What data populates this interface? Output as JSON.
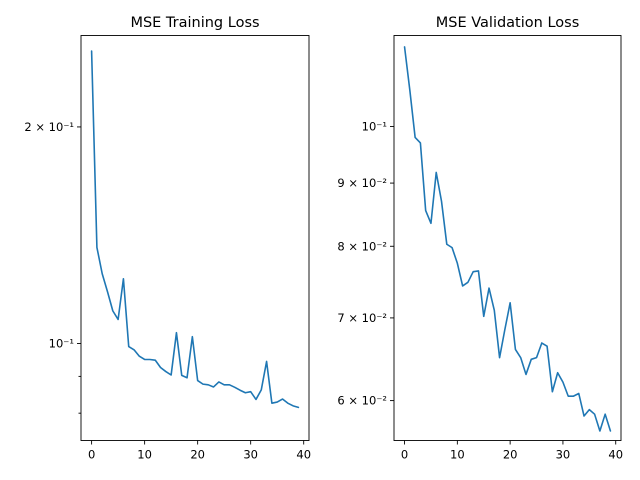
{
  "chart_data": [
    {
      "type": "line",
      "title": "MSE Training Loss",
      "xlabel": "",
      "ylabel": "",
      "yscale": "log",
      "xlim": [
        -2,
        41
      ],
      "ylim": [
        0.0733,
        0.268
      ],
      "xticks": [
        0,
        10,
        20,
        30,
        40
      ],
      "xtick_labels": [
        "0",
        "10",
        "20",
        "30",
        "40"
      ],
      "yticks": [
        0.2,
        0.1
      ],
      "ytick_labels": [
        "2 × 10⁻¹",
        "10⁻¹"
      ],
      "minor_yticks": [
        0.09,
        0.08
      ],
      "grid": false,
      "series": [
        {
          "color": "#1f77b4",
          "x": [
            0,
            1,
            2,
            3,
            4,
            5,
            6,
            7,
            8,
            9,
            10,
            11,
            12,
            13,
            14,
            15,
            16,
            17,
            18,
            19,
            20,
            21,
            22,
            23,
            24,
            25,
            26,
            27,
            28,
            29,
            30,
            31,
            32,
            33,
            34,
            35,
            36,
            37,
            38,
            39
          ],
          "values": [
            0.255,
            0.136,
            0.125,
            0.118,
            0.111,
            0.108,
            0.123,
            0.099,
            0.098,
            0.096,
            0.095,
            0.095,
            0.0948,
            0.0926,
            0.0914,
            0.0904,
            0.1035,
            0.0903,
            0.0896,
            0.1022,
            0.0888,
            0.0878,
            0.0876,
            0.087,
            0.0884,
            0.0876,
            0.0876,
            0.0869,
            0.0861,
            0.0854,
            0.0857,
            0.0836,
            0.0862,
            0.0944,
            0.0826,
            0.0829,
            0.0837,
            0.0826,
            0.0819,
            0.0815
          ]
        }
      ]
    },
    {
      "type": "line",
      "title": "MSE Validation Loss",
      "xlabel": "",
      "ylabel": "",
      "yscale": "log",
      "xlim": [
        -2,
        41
      ],
      "ylim": [
        0.0557,
        0.1185
      ],
      "xticks": [
        0,
        10,
        20,
        30,
        40
      ],
      "xtick_labels": [
        "0",
        "10",
        "20",
        "30",
        "40"
      ],
      "yticks": [
        0.1,
        0.09,
        0.08,
        0.07,
        0.06
      ],
      "ytick_labels": [
        "10⁻¹",
        "9 × 10⁻²",
        "8 × 10⁻²",
        "7 × 10⁻²",
        "6 × 10⁻²"
      ],
      "minor_yticks": [],
      "grid": false,
      "series": [
        {
          "color": "#1f77b4",
          "x": [
            0,
            1,
            2,
            3,
            4,
            5,
            6,
            7,
            8,
            9,
            10,
            11,
            12,
            13,
            14,
            15,
            16,
            17,
            18,
            19,
            20,
            21,
            22,
            23,
            24,
            25,
            26,
            27,
            28,
            29,
            30,
            31,
            32,
            33,
            34,
            35,
            36,
            37,
            38,
            39
          ],
          "values": [
            0.116,
            0.107,
            0.098,
            0.097,
            0.0855,
            0.0835,
            0.0918,
            0.087,
            0.0803,
            0.0798,
            0.0775,
            0.0743,
            0.0748,
            0.0763,
            0.0764,
            0.0702,
            0.074,
            0.071,
            0.065,
            0.0685,
            0.072,
            0.066,
            0.065,
            0.063,
            0.0648,
            0.065,
            0.0668,
            0.0664,
            0.061,
            0.0632,
            0.0621,
            0.0605,
            0.0605,
            0.0608,
            0.0583,
            0.059,
            0.0585,
            0.0567,
            0.0585,
            0.0567
          ]
        }
      ]
    }
  ]
}
